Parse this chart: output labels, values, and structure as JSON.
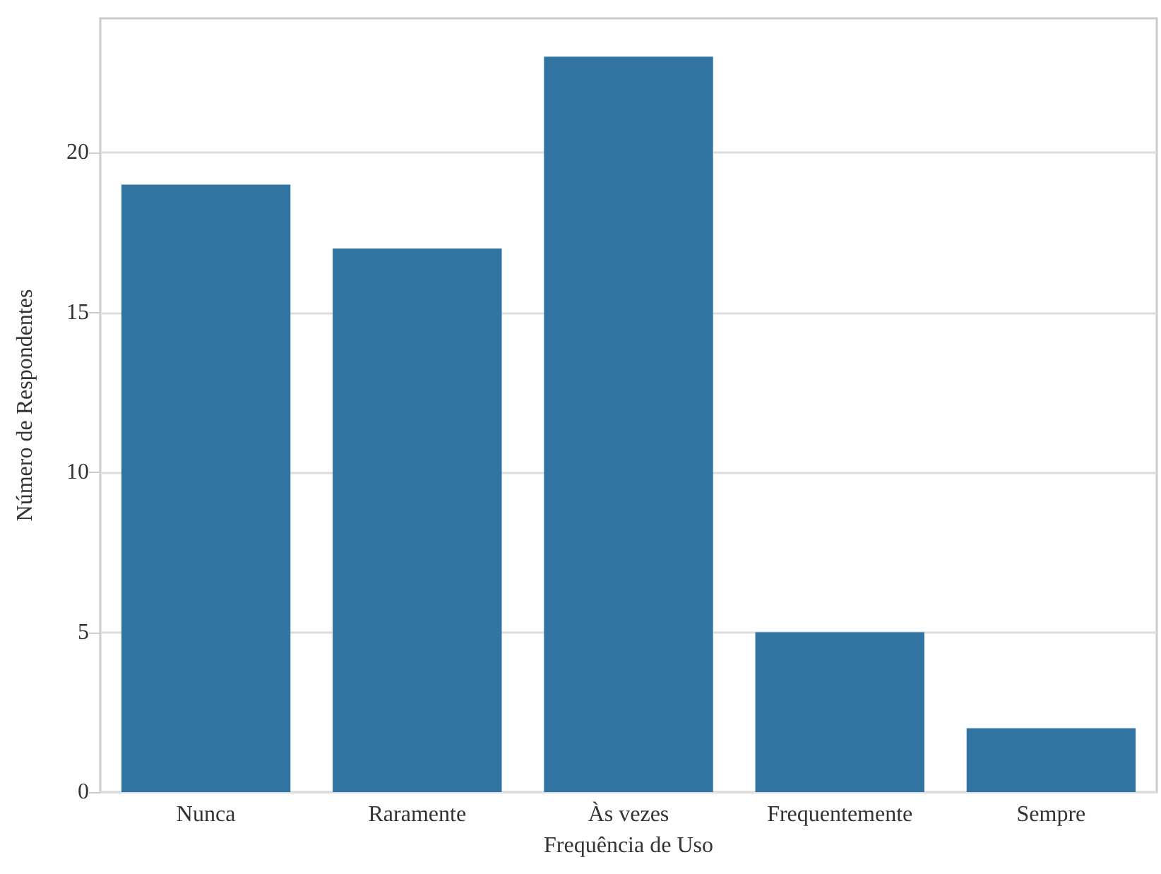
{
  "chart_data": {
    "type": "bar",
    "xlabel": "Frequência de Uso",
    "ylabel": "Número de Respondentes",
    "categories": [
      "Nunca",
      "Raramente",
      "Às vezes",
      "Frequentemente",
      "Sempre"
    ],
    "values": [
      19,
      17,
      23,
      5,
      2
    ],
    "color": "#3274a1",
    "ylim": [
      0,
      24.2
    ],
    "yticks": [
      0,
      5,
      10,
      15,
      20
    ],
    "grid": "y"
  }
}
